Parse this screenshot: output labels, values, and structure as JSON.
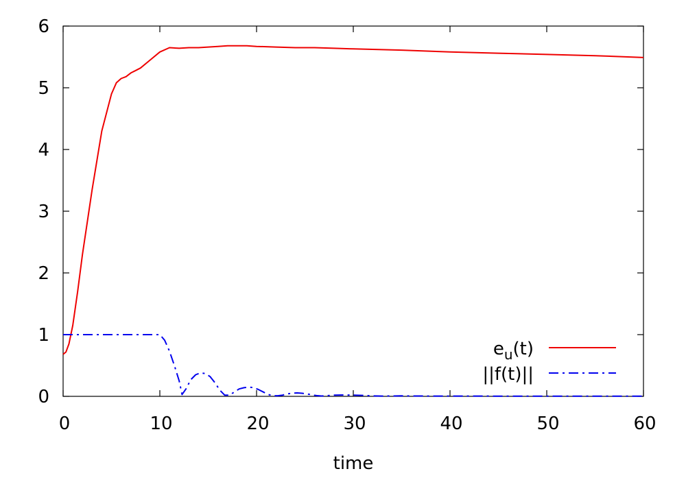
{
  "chart_data": {
    "type": "line",
    "title": "",
    "xlabel": "time",
    "ylabel": "",
    "xlim": [
      0,
      60
    ],
    "ylim": [
      0,
      6
    ],
    "xticks": [
      0,
      10,
      20,
      30,
      40,
      50,
      60
    ],
    "yticks": [
      0,
      1,
      2,
      3,
      4,
      5,
      6
    ],
    "grid": false,
    "legend_position": "bottom-right",
    "series": [
      {
        "name_main": "e",
        "name_sub": "u",
        "name_tail": "(t)",
        "color": "#ee0000",
        "dash": "solid",
        "x": [
          0,
          0.3,
          0.6,
          1,
          1.5,
          2,
          3,
          4,
          5,
          5.5,
          6,
          6.5,
          7,
          7.5,
          8,
          9,
          10,
          11,
          12,
          13,
          14,
          15,
          16,
          17,
          18,
          19,
          20,
          22,
          24,
          26,
          28,
          30,
          35,
          40,
          45,
          50,
          55,
          60
        ],
        "y": [
          0.68,
          0.72,
          0.85,
          1.15,
          1.7,
          2.3,
          3.35,
          4.3,
          4.9,
          5.08,
          5.15,
          5.18,
          5.24,
          5.28,
          5.32,
          5.45,
          5.58,
          5.65,
          5.64,
          5.65,
          5.65,
          5.66,
          5.67,
          5.68,
          5.68,
          5.68,
          5.67,
          5.66,
          5.65,
          5.65,
          5.64,
          5.63,
          5.61,
          5.58,
          5.56,
          5.54,
          5.52,
          5.49
        ]
      },
      {
        "name_main": "||f(t)||",
        "color": "#0000ee",
        "dash": "dashdot",
        "x": [
          0,
          2,
          4,
          6,
          8,
          9,
          10,
          10.5,
          11,
          11.5,
          12,
          12.3,
          12.7,
          13.2,
          13.7,
          14.2,
          14.7,
          15.2,
          15.7,
          16.2,
          16.7,
          17.2,
          17.7,
          18.2,
          18.7,
          19.2,
          19.7,
          20.2,
          20.7,
          21.2,
          21.7,
          22.2,
          22.7,
          23.2,
          23.7,
          24.2,
          24.7,
          25.2,
          25.7,
          26.2,
          26.7,
          27.2,
          28,
          29,
          30,
          31,
          32,
          33,
          34,
          35,
          36,
          38,
          40,
          45,
          50,
          55,
          60
        ],
        "y": [
          1,
          1,
          1,
          1,
          1,
          1,
          1,
          0.91,
          0.73,
          0.5,
          0.25,
          0.03,
          0.12,
          0.27,
          0.35,
          0.38,
          0.37,
          0.32,
          0.22,
          0.1,
          0.02,
          0.02,
          0.07,
          0.12,
          0.14,
          0.15,
          0.14,
          0.11,
          0.07,
          0.03,
          0.01,
          0.01,
          0.02,
          0.04,
          0.05,
          0.055,
          0.05,
          0.04,
          0.025,
          0.012,
          0.005,
          0.01,
          0.02,
          0.022,
          0.02,
          0.015,
          0.008,
          0.004,
          0.006,
          0.008,
          0.006,
          0.004,
          0.004,
          0.003,
          0.003,
          0.002,
          0.002
        ]
      }
    ]
  }
}
